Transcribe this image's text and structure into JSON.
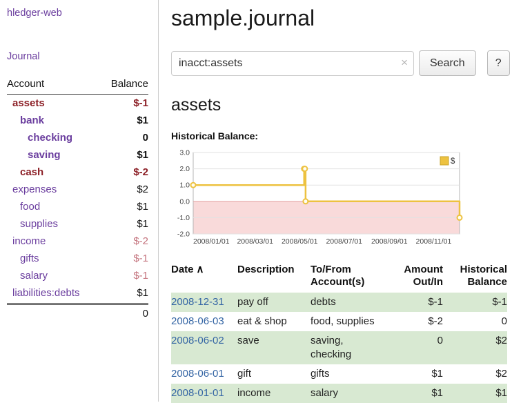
{
  "app_title": "hledger-web",
  "sidebar": {
    "journal_link": "Journal",
    "accounts_header": {
      "account": "Account",
      "balance": "Balance"
    },
    "accounts": [
      {
        "name": "assets",
        "balance": "$-1"
      },
      {
        "name": "bank",
        "balance": "$1"
      },
      {
        "name": "checking",
        "balance": "0"
      },
      {
        "name": "saving",
        "balance": "$1"
      },
      {
        "name": "cash",
        "balance": "$-2"
      },
      {
        "name": "expenses",
        "balance": "$2"
      },
      {
        "name": "food",
        "balance": "$1"
      },
      {
        "name": "supplies",
        "balance": "$1"
      },
      {
        "name": "income",
        "balance": "$-2"
      },
      {
        "name": "gifts",
        "balance": "$-1"
      },
      {
        "name": "salary",
        "balance": "$-1"
      },
      {
        "name": "liabilities:debts",
        "balance": "$1"
      }
    ],
    "total": "0"
  },
  "header": {
    "title": "sample.journal"
  },
  "search": {
    "value": "inacct:assets",
    "clear_icon": "×",
    "button_label": "Search",
    "help_label": "?"
  },
  "account_page": {
    "heading": "assets",
    "chart_title": "Historical Balance:"
  },
  "chart_data": {
    "type": "line",
    "title": "Historical Balance",
    "legend": [
      {
        "label": "$",
        "color": "#edc240"
      }
    ],
    "ylim": [
      -2.0,
      3.0
    ],
    "yticks": [
      "3.0",
      "2.0",
      "1.0",
      "0.0",
      "-1.0",
      "-2.0"
    ],
    "x_range": [
      "2008/01/01",
      "2008/12/31"
    ],
    "xticks": [
      "2008/01/01",
      "2008/03/01",
      "2008/05/01",
      "2008/07/01",
      "2008/09/01",
      "2008/11/01"
    ],
    "series": [
      {
        "name": "$",
        "step": true,
        "points": [
          {
            "date": "2008/01/01",
            "value": 1
          },
          {
            "date": "2008/06/01",
            "value": 2
          },
          {
            "date": "2008/06/02",
            "value": 2
          },
          {
            "date": "2008/06/03",
            "value": 0
          },
          {
            "date": "2008/12/31",
            "value": -1
          }
        ]
      }
    ],
    "line_color": "#edc240",
    "negative_fill": "#f9dada",
    "zero_line_color": "#e4a3a3",
    "grid": true,
    "legend_position": "top-right"
  },
  "register": {
    "headers": {
      "date": "Date",
      "sort_icon": "∧",
      "description": "Description",
      "accounts": "To/From Account(s)",
      "amount": "Amount Out/In",
      "balance": "Historical Balance"
    },
    "rows": [
      {
        "date": "2008-12-31",
        "description": "pay off",
        "accounts": "debts",
        "amount": "$-1",
        "balance": "$-1"
      },
      {
        "date": "2008-06-03",
        "description": "eat & shop",
        "accounts": "food, supplies",
        "amount": "$-2",
        "balance": "0"
      },
      {
        "date": "2008-06-02",
        "description": "save",
        "accounts": "saving, checking",
        "amount": "0",
        "balance": "$2"
      },
      {
        "date": "2008-06-01",
        "description": "gift",
        "accounts": "gifts",
        "amount": "$1",
        "balance": "$2"
      },
      {
        "date": "2008-01-01",
        "description": "income",
        "accounts": "salary",
        "amount": "$1",
        "balance": "$1"
      }
    ]
  }
}
